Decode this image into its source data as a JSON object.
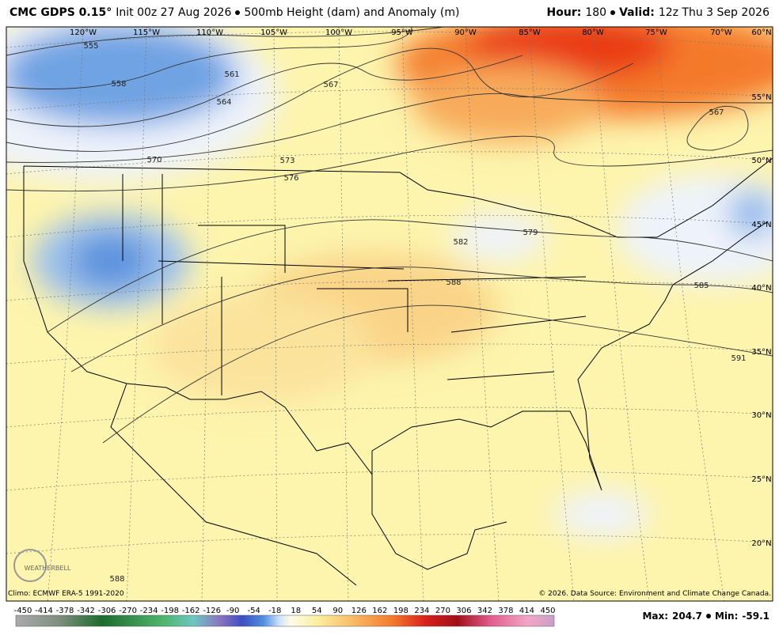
{
  "header": {
    "model": "CMC GDPS 0.15°",
    "init": "Init 00z 27 Aug 2026",
    "product": "500mb Height (dam) and Anomaly (m)",
    "hour_label": "Hour:",
    "hour": "180",
    "valid_label": "Valid:",
    "valid": "12z Thu 3 Sep 2026"
  },
  "map": {
    "longitude_labels": [
      "120°W",
      "115°W",
      "110°W",
      "105°W",
      "100°W",
      "95°W",
      "90°W",
      "85°W",
      "80°W",
      "75°W",
      "70°W"
    ],
    "latitude_labels": [
      "60°N",
      "55°N",
      "50°N",
      "45°N",
      "40°N",
      "35°N",
      "30°N",
      "25°N",
      "20°N"
    ],
    "contour_labels": [
      "555",
      "558",
      "561",
      "564",
      "567",
      "570",
      "573",
      "576",
      "579",
      "582",
      "588",
      "585",
      "591",
      "567",
      "588"
    ],
    "logo": "WEATHERBELL"
  },
  "footer": {
    "climo": "Climo: ECMWF ERA-5 1991-2020",
    "copyright": "© 2026. Data Source: Environment and Climate Change Canada.",
    "max_label": "Max:",
    "max": "204.7",
    "min_label": "Min:",
    "min": "-59.1"
  },
  "colorbar": {
    "labels": [
      -450,
      -414,
      -378,
      -342,
      -306,
      -270,
      -234,
      -198,
      -162,
      -126,
      -90,
      -54,
      -18,
      18,
      54,
      90,
      126,
      162,
      198,
      234,
      270,
      306,
      342,
      378,
      414,
      450
    ]
  }
}
